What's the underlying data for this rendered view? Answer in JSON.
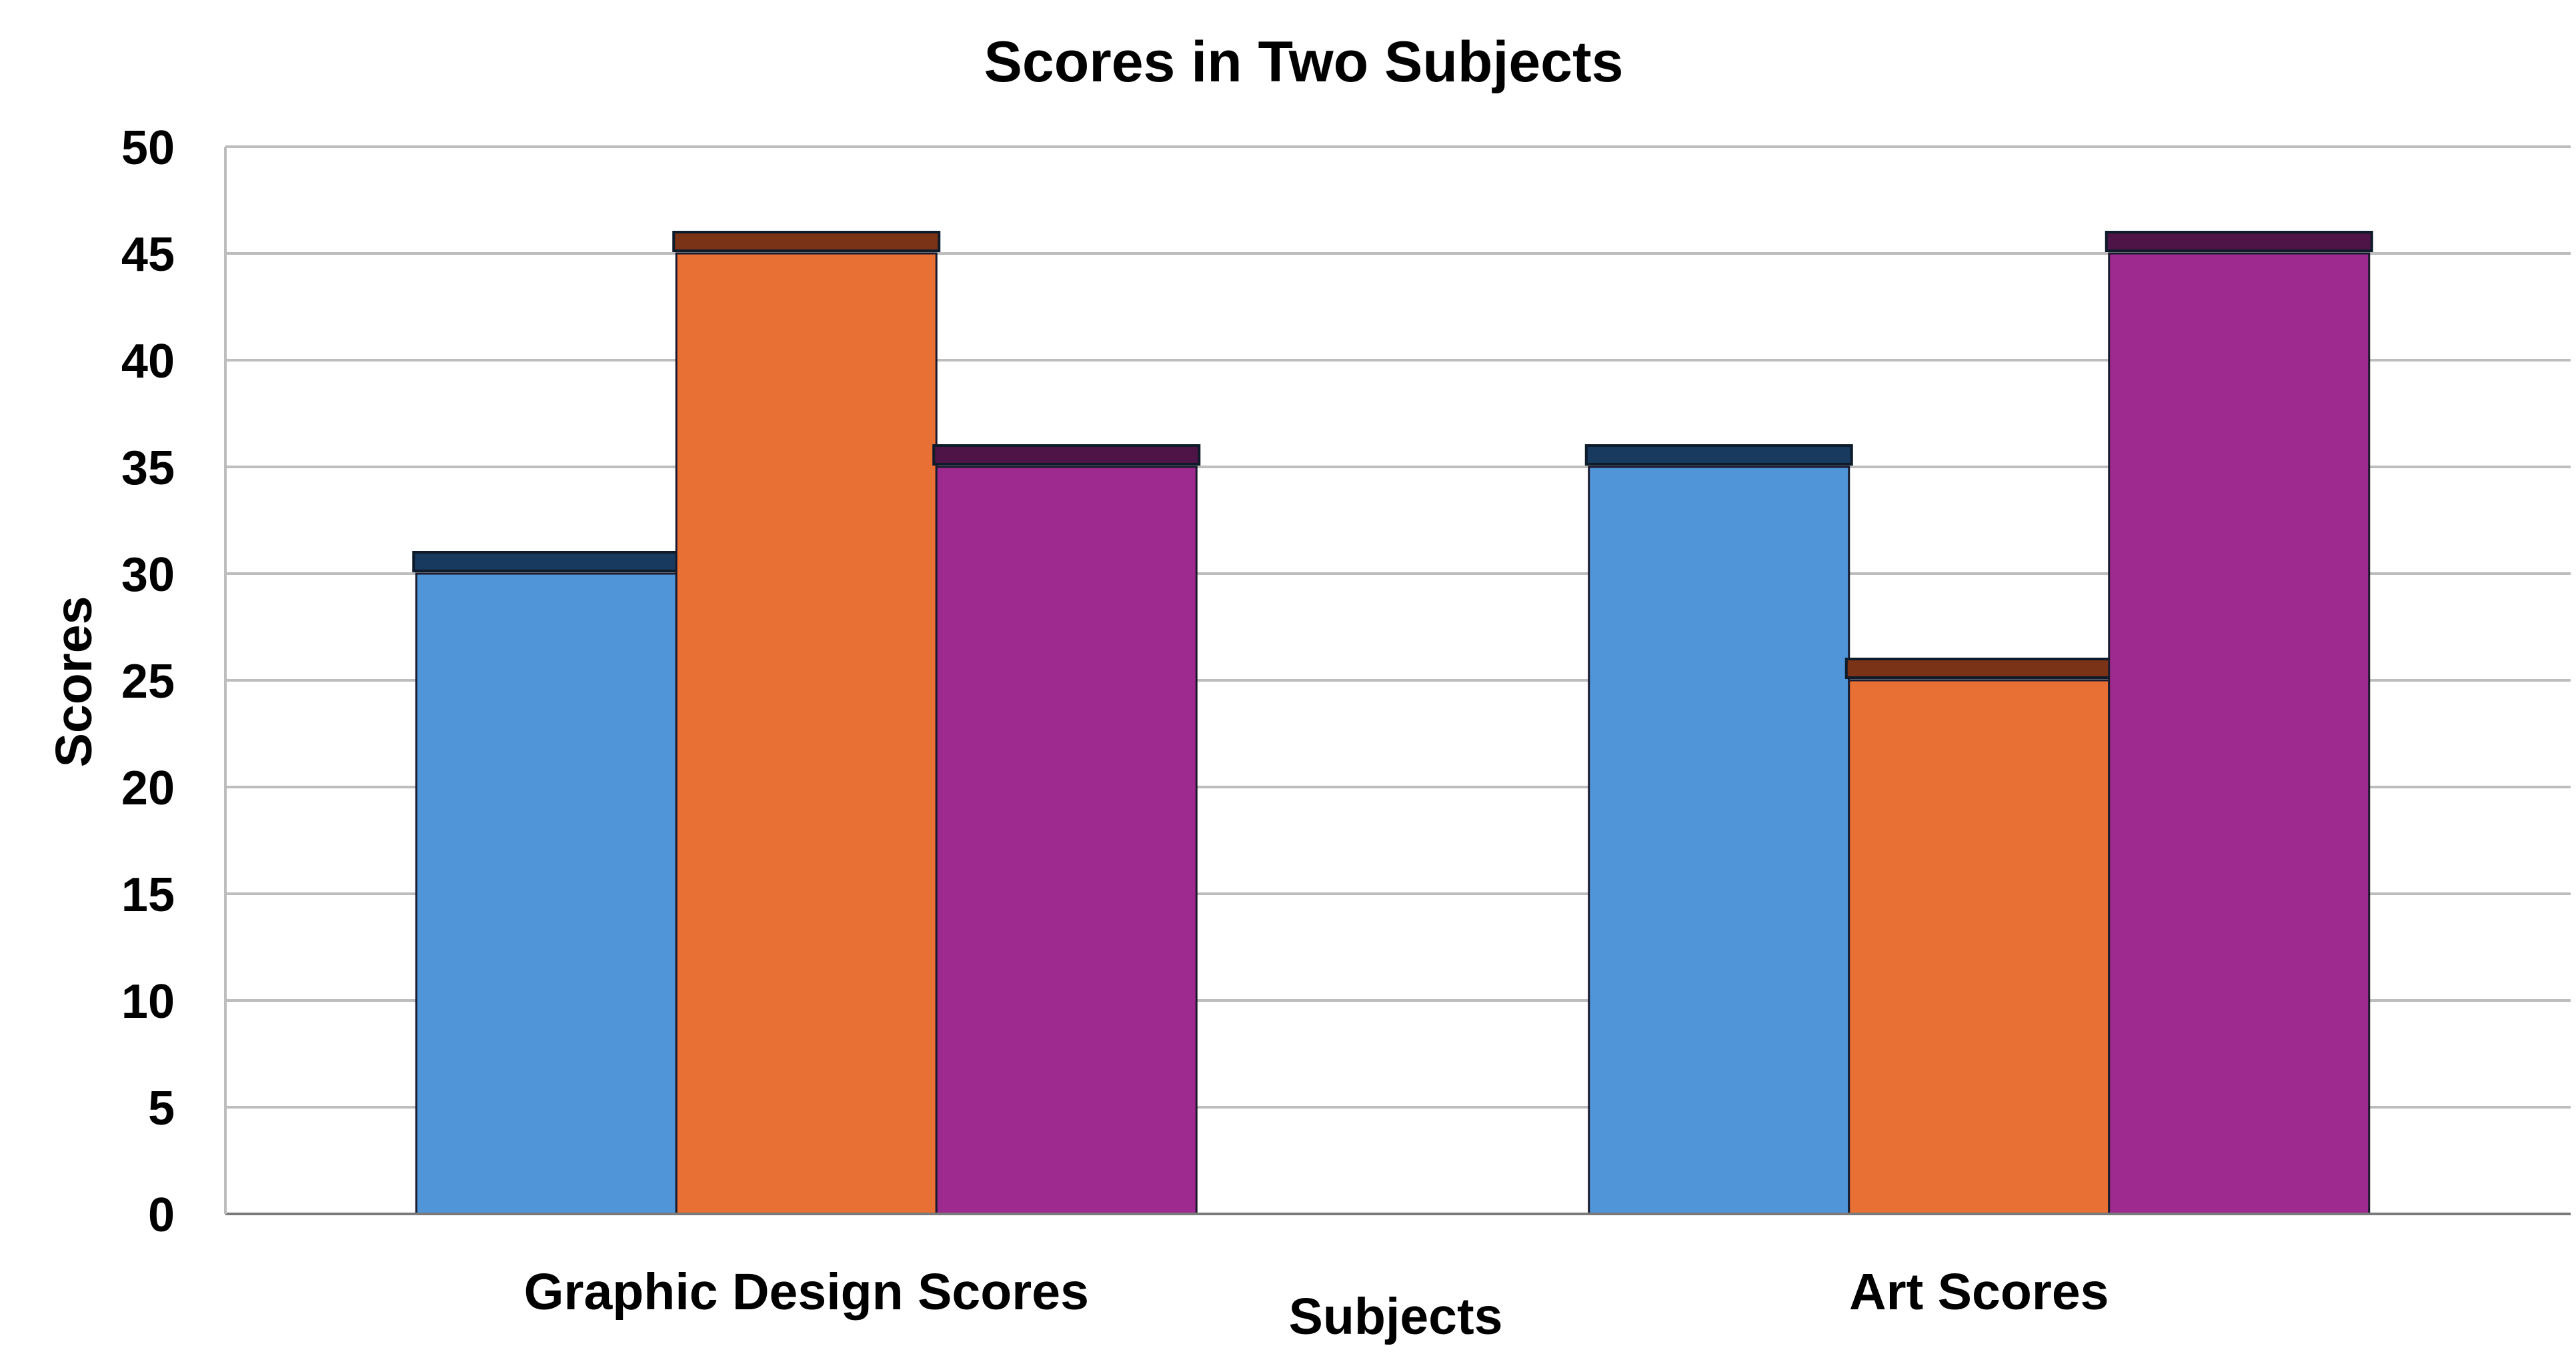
{
  "chart_data": {
    "type": "bar",
    "title": "Scores in Two Subjects",
    "xlabel": "Subjects",
    "ylabel": "Scores",
    "categories": [
      "Graphic Design Scores",
      "Art Scores"
    ],
    "series": [
      {
        "values": [
          30,
          35
        ],
        "color": "#5095d8",
        "cap_color": "#173a5e"
      },
      {
        "values": [
          45,
          25
        ],
        "color": "#e87034",
        "cap_color": "#7a3317"
      },
      {
        "values": [
          35,
          45
        ],
        "color": "#9e2a8f",
        "cap_color": "#4f1447"
      }
    ],
    "ylim": [
      0,
      50
    ],
    "yticks": [
      0,
      5,
      10,
      15,
      20,
      25,
      30,
      35,
      40,
      45,
      50
    ],
    "grid": true,
    "grid_color": "#bdbdbd",
    "legend": "none"
  }
}
